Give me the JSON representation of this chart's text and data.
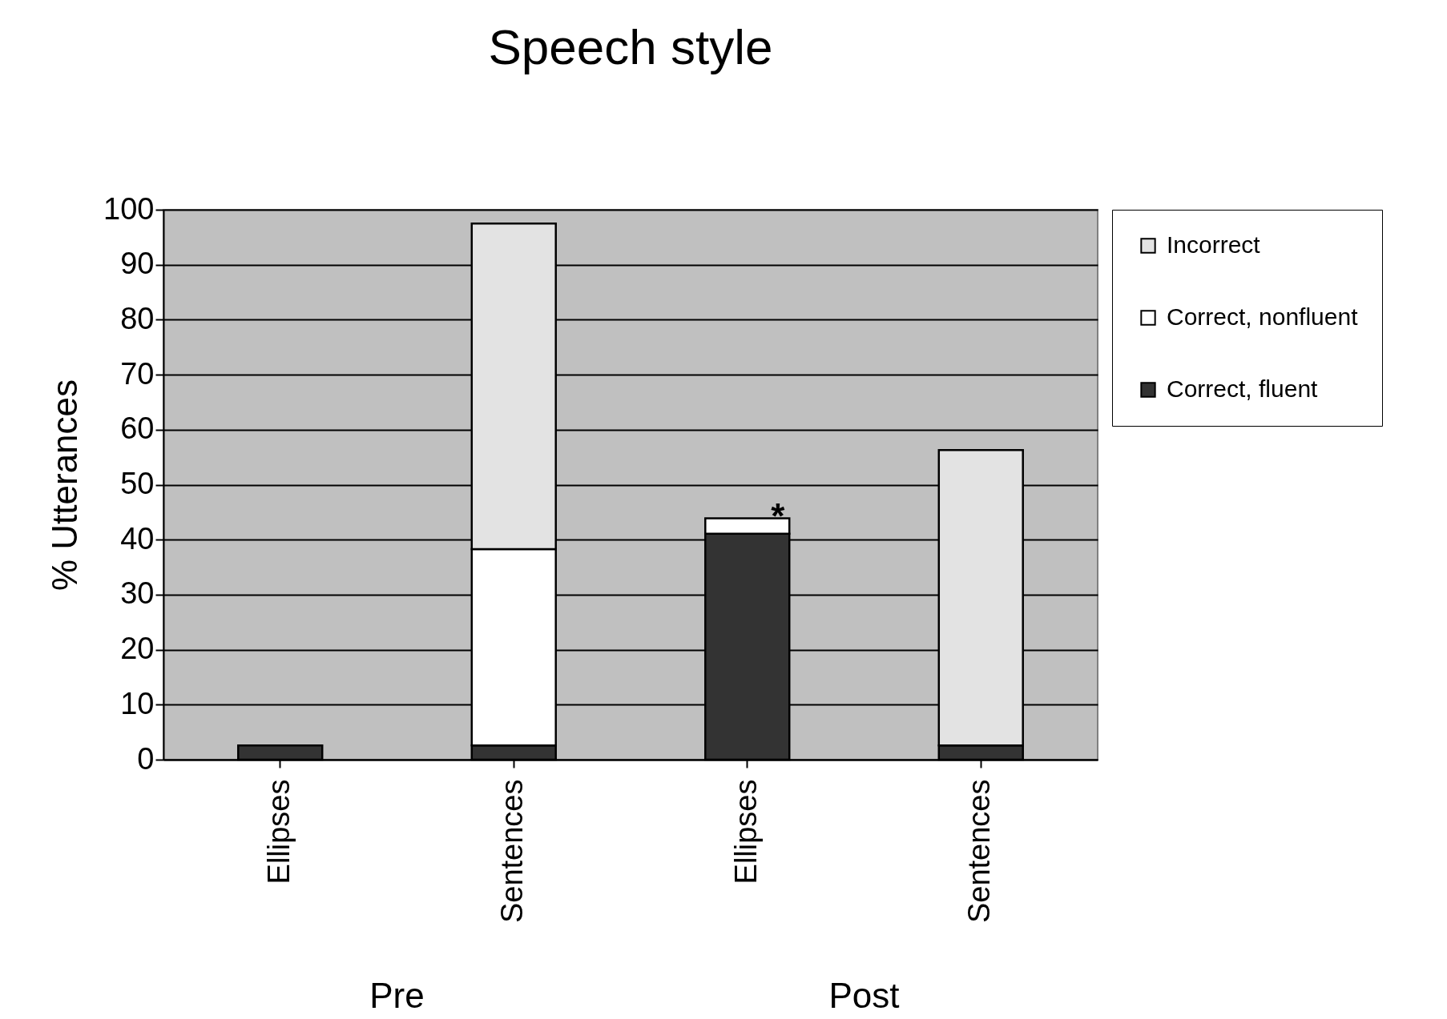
{
  "chart_data": {
    "type": "bar",
    "title": "Speech style",
    "ylabel": "% Utterances",
    "categories": [
      "Ellipses",
      "Sentences",
      "Ellipses",
      "Sentences"
    ],
    "stacked": true,
    "series": [
      {
        "name": "Correct, fluent",
        "color": "#333333",
        "values": [
          2.6,
          2.6,
          41.1,
          2.6
        ]
      },
      {
        "name": "Correct, nonfluent",
        "color": "#ffffff",
        "values": [
          null,
          35.7,
          2.8,
          null
        ]
      },
      {
        "name": "Incorrect",
        "color": "#e3e3e3",
        "values": [
          null,
          59.2,
          null,
          53.7
        ]
      }
    ],
    "ylim": [
      0,
      100
    ],
    "yticks": [
      0,
      10,
      20,
      30,
      40,
      50,
      60,
      70,
      80,
      90,
      100
    ],
    "grid": "y",
    "legend": "right",
    "annotations": [
      "Pre",
      "Post",
      {
        "text": "*",
        "y": 43.9
      }
    ]
  }
}
